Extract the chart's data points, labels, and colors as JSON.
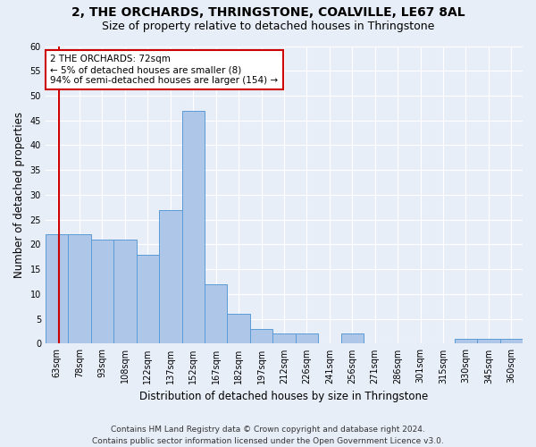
{
  "title": "2, THE ORCHARDS, THRINGSTONE, COALVILLE, LE67 8AL",
  "subtitle": "Size of property relative to detached houses in Thringstone",
  "xlabel": "Distribution of detached houses by size in Thringstone",
  "ylabel": "Number of detached properties",
  "categories": [
    "63sqm",
    "78sqm",
    "93sqm",
    "108sqm",
    "122sqm",
    "137sqm",
    "152sqm",
    "167sqm",
    "182sqm",
    "197sqm",
    "212sqm",
    "226sqm",
    "241sqm",
    "256sqm",
    "271sqm",
    "286sqm",
    "301sqm",
    "315sqm",
    "330sqm",
    "345sqm",
    "360sqm"
  ],
  "values": [
    22,
    22,
    21,
    21,
    18,
    27,
    47,
    12,
    6,
    3,
    2,
    2,
    0,
    2,
    0,
    0,
    0,
    0,
    1,
    1,
    1
  ],
  "bar_color": "#aec6e8",
  "bar_edge_color": "#5b9bd5",
  "marker_line_color": "#cc0000",
  "annotation_line1": "2 THE ORCHARDS: 72sqm",
  "annotation_line2": "← 5% of detached houses are smaller (8)",
  "annotation_line3": "94% of semi-detached houses are larger (154) →",
  "annotation_box_color": "#ffffff",
  "annotation_box_edge_color": "#cc0000",
  "ylim": [
    0,
    60
  ],
  "yticks": [
    0,
    5,
    10,
    15,
    20,
    25,
    30,
    35,
    40,
    45,
    50,
    55,
    60
  ],
  "footer_line1": "Contains HM Land Registry data © Crown copyright and database right 2024.",
  "footer_line2": "Contains public sector information licensed under the Open Government Licence v3.0.",
  "background_color": "#e8eef8",
  "grid_color": "#ffffff",
  "title_fontsize": 10,
  "subtitle_fontsize": 9,
  "axis_label_fontsize": 8.5,
  "tick_fontsize": 7,
  "footer_fontsize": 6.5,
  "annotation_fontsize": 7.5
}
